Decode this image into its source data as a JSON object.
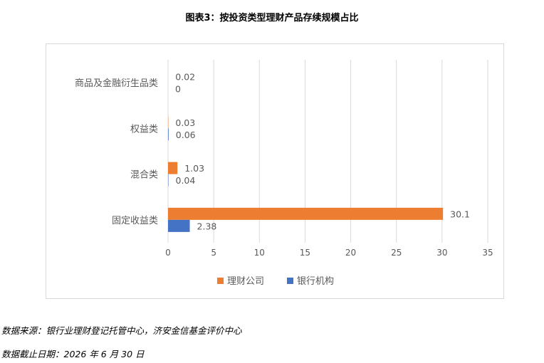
{
  "title": "图表3：按投资类型理财产品存续规模占比",
  "footnotes": {
    "source": "数据来源：银行业理财登记托管中心，济安金信基金评价中心",
    "date": "数据截止日期：2026 年 6 月 30 日"
  },
  "chart_data": {
    "type": "bar",
    "orientation": "horizontal",
    "title": "",
    "xlabel": "",
    "ylabel": "",
    "categories": [
      "商品及金融衍生品类",
      "权益类",
      "混合类",
      "固定收益类"
    ],
    "series": [
      {
        "name": "理财公司",
        "values": [
          0.02,
          0.03,
          1.03,
          30.1
        ],
        "labels": [
          "0.02",
          "0.03",
          "1.03",
          "30.1"
        ],
        "color": "#ed7d31"
      },
      {
        "name": "银行机构",
        "values": [
          0,
          0.06,
          0.04,
          2.38
        ],
        "labels": [
          "0",
          "0.06",
          "0.04",
          "2.38"
        ],
        "color": "#4472c4"
      }
    ],
    "xlim": [
      0,
      35
    ],
    "xticks": [
      "0",
      "5",
      "10",
      "15",
      "20",
      "25",
      "30",
      "35"
    ],
    "grid": true,
    "legend": "bottom"
  }
}
